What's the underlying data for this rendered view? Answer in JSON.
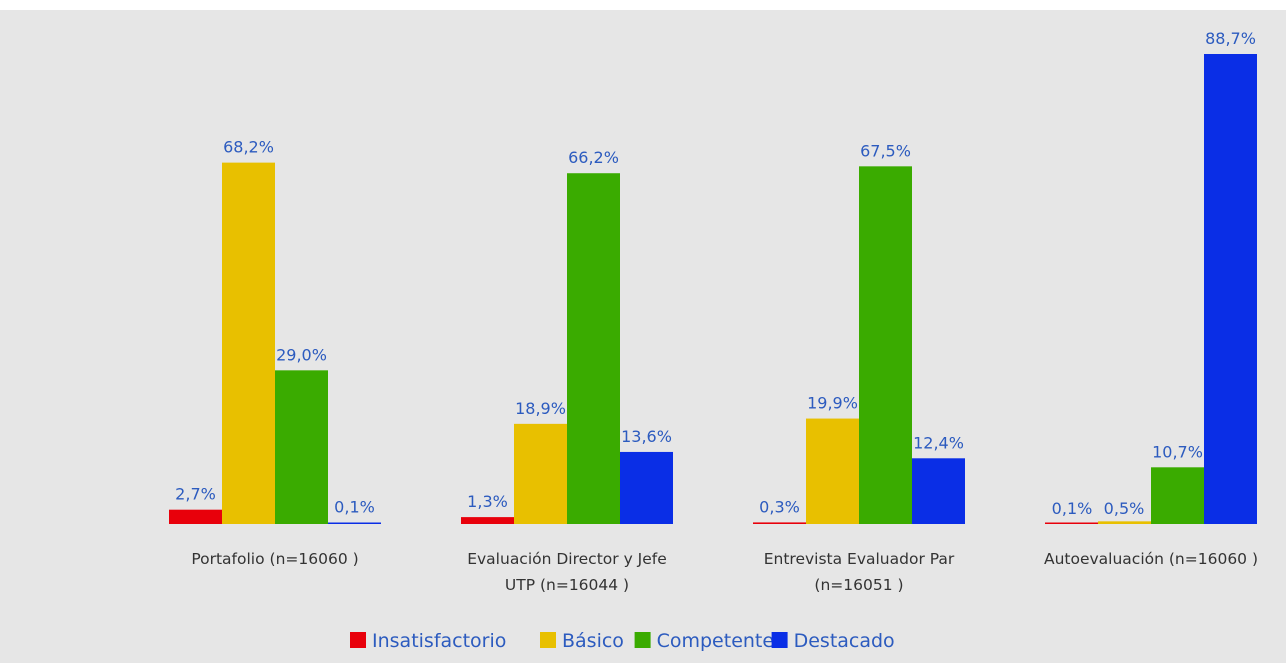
{
  "chart_data": {
    "type": "bar",
    "title": "",
    "xlabel": "",
    "ylabel": "",
    "ylim": [
      0,
      100
    ],
    "grid": false,
    "legend_position": "bottom",
    "categories": [
      "Portafolio (n=16060 )",
      "Evaluación Director y Jefe UTP (n=16044 )",
      "Entrevista Evaluador Par (n=16051 )",
      "Autoevaluación (n=16060 )"
    ],
    "category_label_lines": [
      [
        "Portafolio (n=16060 )"
      ],
      [
        "Evaluación Director y Jefe",
        "UTP (n=16044 )"
      ],
      [
        "Entrevista Evaluador Par",
        "(n=16051 )"
      ],
      [
        "Autoevaluación (n=16060 )"
      ]
    ],
    "series": [
      {
        "name": "Insatisfactorio",
        "color": "#e8000b",
        "values": [
          2.7,
          1.3,
          0.3,
          0.1
        ],
        "labels": [
          "2,7%",
          "1,3%",
          "0,3%",
          "0,1%"
        ]
      },
      {
        "name": "Básico",
        "color": "#e8c000",
        "values": [
          68.2,
          18.9,
          19.9,
          0.5
        ],
        "labels": [
          "68,2%",
          "18,9%",
          "19,9%",
          "0,5%"
        ]
      },
      {
        "name": "Competente",
        "color": "#3aab00",
        "values": [
          29.0,
          66.2,
          67.5,
          10.7
        ],
        "labels": [
          "29,0%",
          "66,2%",
          "67,5%",
          "10,7%"
        ]
      },
      {
        "name": "Destacado",
        "color": "#0a2ee6",
        "values": [
          0.1,
          13.6,
          12.4,
          88.7
        ],
        "labels": [
          "0,1%",
          "13,6%",
          "12,4%",
          "88,7%"
        ]
      }
    ],
    "colors": {
      "plot_background": "#e6e6e6",
      "data_label": "#2c5bbf",
      "legend_text": "#2c5bbf",
      "axis_text": "#333333"
    }
  }
}
